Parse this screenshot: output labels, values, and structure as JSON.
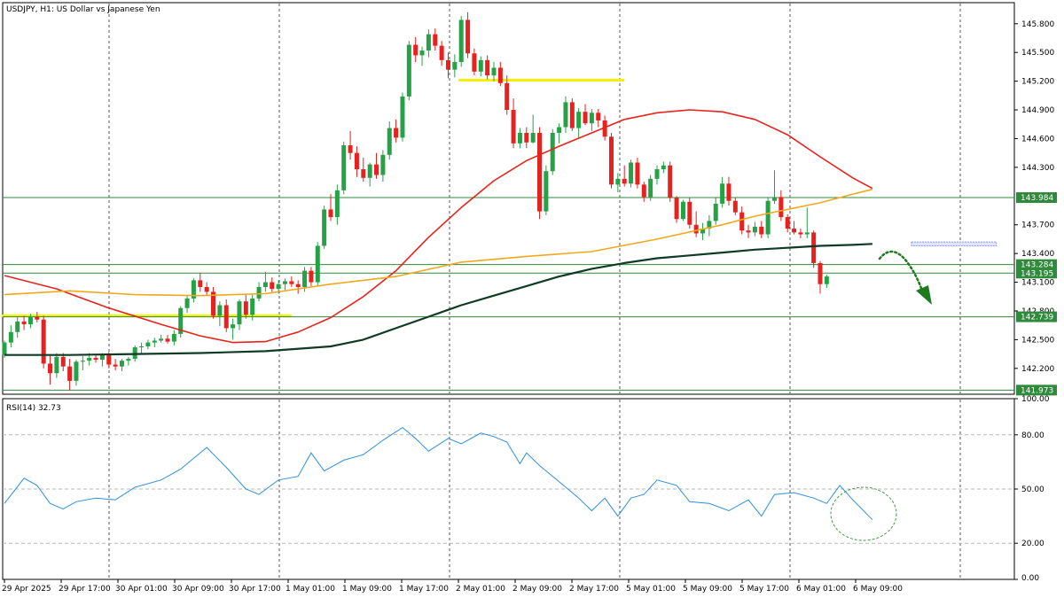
{
  "header": {
    "title": "USDJPY, H1:  US Dollar vs Japanese Yen"
  },
  "colors": {
    "bull": "#26a145",
    "bear": "#e8201e",
    "ma_fast": "#e8231c",
    "ma_mid": "#f2a81d",
    "ma_slow": "#0f3b24",
    "level_line": "#2d8a3a",
    "level_tag": "#2f8a3c",
    "yellow_level": "#f4f000",
    "rsi_line": "#2f8fe0",
    "forecast": "#1f7a1f",
    "zone": "#8f9ae8",
    "grid": "#555555"
  },
  "chart_data": [
    {
      "type": "candlestick",
      "title": "USDJPY, H1:  US Dollar vs Japanese Yen",
      "x_tick_labels": [
        "29 Apr 2025",
        "29 Apr 17:00",
        "30 Apr 01:00",
        "30 Apr 09:00",
        "30 Apr 17:00",
        "1 May 01:00",
        "1 May 09:00",
        "1 May 17:00",
        "2 May 01:00",
        "2 May 09:00",
        "2 May 17:00",
        "5 May 01:00",
        "5 May 09:00",
        "5 May 17:00",
        "6 May 01:00",
        "6 May 09:00"
      ],
      "y_tick_labels": [
        "145.800",
        "145.500",
        "145.200",
        "144.900",
        "144.600",
        "144.300",
        "143.700",
        "143.400",
        "143.100",
        "142.800",
        "142.500",
        "142.200"
      ],
      "y_ticks": [
        145.8,
        145.5,
        145.2,
        144.9,
        144.6,
        144.3,
        143.7,
        143.4,
        143.1,
        142.8,
        142.5,
        142.2
      ],
      "ylim": [
        141.93,
        146.02
      ],
      "grid": "vertical dashed",
      "price_levels": [
        {
          "value": 143.984,
          "label": "143.984"
        },
        {
          "value": 143.284,
          "label": "143.284"
        },
        {
          "value": 143.195,
          "label": "143.195"
        },
        {
          "value": 142.739,
          "label": "142.739"
        },
        {
          "value": 141.973,
          "label": "141.973"
        }
      ],
      "yellow_levels": [
        {
          "value": 145.21,
          "from_bar": 70,
          "to_bar": 95
        },
        {
          "value": 142.75,
          "from_bar": 0,
          "to_bar": 44
        }
      ],
      "zone": {
        "low": 143.48,
        "high": 143.52,
        "from_bar": 139,
        "to_bar": 152
      },
      "candles": [
        [
          142.34,
          142.49,
          142.31,
          142.47
        ],
        [
          142.47,
          142.65,
          142.42,
          142.58
        ],
        [
          142.58,
          142.74,
          142.52,
          142.69
        ],
        [
          142.69,
          142.75,
          142.6,
          142.66
        ],
        [
          142.66,
          142.77,
          142.62,
          142.74
        ],
        [
          142.74,
          142.79,
          142.68,
          142.71
        ],
        [
          142.71,
          142.75,
          142.2,
          142.25
        ],
        [
          142.25,
          142.33,
          142.03,
          142.15
        ],
        [
          142.15,
          142.36,
          142.1,
          142.32
        ],
        [
          142.32,
          142.36,
          142.17,
          142.22
        ],
        [
          142.22,
          142.3,
          141.97,
          142.07
        ],
        [
          142.07,
          142.29,
          142.02,
          142.27
        ],
        [
          142.27,
          142.33,
          142.18,
          142.28
        ],
        [
          142.28,
          142.36,
          142.23,
          142.31
        ],
        [
          142.31,
          142.35,
          142.26,
          142.29
        ],
        [
          142.29,
          142.36,
          142.22,
          142.34
        ],
        [
          142.34,
          142.37,
          142.2,
          142.24
        ],
        [
          142.24,
          142.3,
          142.18,
          142.22
        ],
        [
          142.22,
          142.3,
          142.17,
          142.28
        ],
        [
          142.28,
          142.32,
          142.23,
          142.3
        ],
        [
          142.3,
          142.44,
          142.27,
          142.42
        ],
        [
          142.42,
          142.47,
          142.35,
          142.43
        ],
        [
          142.43,
          142.5,
          142.4,
          142.47
        ],
        [
          142.47,
          142.52,
          142.42,
          142.49
        ],
        [
          142.49,
          142.55,
          142.47,
          142.51
        ],
        [
          142.51,
          142.55,
          142.46,
          142.48
        ],
        [
          142.48,
          142.6,
          142.44,
          142.56
        ],
        [
          142.56,
          142.85,
          142.52,
          142.83
        ],
        [
          142.83,
          142.96,
          142.78,
          142.93
        ],
        [
          142.93,
          143.14,
          142.89,
          143.12
        ],
        [
          143.12,
          143.2,
          143.0,
          143.05
        ],
        [
          143.05,
          143.1,
          142.96,
          143.0
        ],
        [
          143.0,
          143.05,
          142.72,
          142.75
        ],
        [
          142.75,
          142.9,
          142.64,
          142.86
        ],
        [
          142.86,
          142.92,
          142.58,
          142.62
        ],
        [
          142.62,
          142.72,
          142.5,
          142.66
        ],
        [
          142.66,
          142.92,
          142.6,
          142.9
        ],
        [
          142.9,
          142.97,
          142.72,
          142.76
        ],
        [
          142.76,
          142.97,
          142.7,
          142.93
        ],
        [
          142.93,
          143.1,
          142.9,
          143.05
        ],
        [
          143.05,
          143.21,
          143.0,
          143.1
        ],
        [
          143.1,
          143.15,
          143.0,
          143.03
        ],
        [
          143.03,
          143.12,
          142.98,
          143.08
        ],
        [
          143.08,
          143.14,
          143.02,
          143.11
        ],
        [
          143.11,
          143.16,
          143.05,
          143.08
        ],
        [
          143.08,
          143.12,
          142.98,
          143.05
        ],
        [
          143.05,
          143.26,
          143.0,
          143.22
        ],
        [
          143.22,
          143.26,
          143.06,
          143.1
        ],
        [
          143.1,
          143.52,
          143.06,
          143.48
        ],
        [
          143.48,
          143.9,
          143.45,
          143.86
        ],
        [
          143.86,
          144.02,
          143.74,
          143.78
        ],
        [
          143.78,
          144.12,
          143.7,
          144.06
        ],
        [
          144.06,
          144.57,
          144.02,
          144.53
        ],
        [
          144.53,
          144.68,
          144.38,
          144.45
        ],
        [
          144.45,
          144.52,
          144.2,
          144.28
        ],
        [
          144.28,
          144.4,
          144.15,
          144.19
        ],
        [
          144.19,
          144.35,
          144.1,
          144.33
        ],
        [
          144.33,
          144.45,
          144.18,
          144.22
        ],
        [
          144.22,
          144.48,
          144.15,
          144.43
        ],
        [
          144.43,
          144.78,
          144.38,
          144.71
        ],
        [
          144.71,
          144.8,
          144.56,
          144.61
        ],
        [
          144.61,
          145.08,
          144.57,
          145.04
        ],
        [
          145.04,
          145.62,
          145.0,
          145.58
        ],
        [
          145.58,
          145.66,
          145.4,
          145.47
        ],
        [
          145.47,
          145.56,
          145.36,
          145.52
        ],
        [
          145.52,
          145.74,
          145.45,
          145.69
        ],
        [
          145.69,
          145.75,
          145.52,
          145.57
        ],
        [
          145.57,
          145.62,
          145.36,
          145.42
        ],
        [
          145.42,
          145.5,
          145.23,
          145.32
        ],
        [
          145.32,
          145.48,
          145.24,
          145.4
        ],
        [
          145.4,
          145.88,
          145.35,
          145.84
        ],
        [
          145.84,
          145.92,
          145.44,
          145.49
        ],
        [
          145.49,
          145.54,
          145.26,
          145.3
        ],
        [
          145.3,
          145.46,
          145.25,
          145.42
        ],
        [
          145.42,
          145.47,
          145.22,
          145.26
        ],
        [
          145.26,
          145.4,
          145.2,
          145.34
        ],
        [
          145.34,
          145.4,
          145.15,
          145.18
        ],
        [
          145.18,
          145.26,
          144.85,
          144.9
        ],
        [
          144.9,
          145.02,
          144.5,
          144.55
        ],
        [
          144.55,
          144.71,
          144.5,
          144.66
        ],
        [
          144.66,
          144.72,
          144.5,
          144.56
        ],
        [
          144.56,
          144.85,
          144.55,
          144.66
        ],
        [
          144.66,
          144.72,
          143.76,
          143.84
        ],
        [
          143.84,
          144.32,
          143.8,
          144.26
        ],
        [
          144.26,
          144.7,
          144.22,
          144.66
        ],
        [
          144.66,
          144.76,
          144.55,
          144.72
        ],
        [
          144.72,
          145.04,
          144.66,
          144.98
        ],
        [
          144.98,
          145.02,
          144.68,
          144.71
        ],
        [
          144.71,
          144.92,
          144.6,
          144.88
        ],
        [
          144.88,
          144.96,
          144.74,
          144.76
        ],
        [
          144.76,
          144.91,
          144.68,
          144.87
        ],
        [
          144.87,
          144.91,
          144.72,
          144.79
        ],
        [
          144.79,
          144.84,
          144.58,
          144.62
        ],
        [
          144.62,
          144.66,
          144.08,
          144.12
        ],
        [
          144.12,
          144.24,
          144.04,
          144.18
        ],
        [
          144.18,
          144.32,
          144.1,
          144.13
        ],
        [
          144.13,
          144.38,
          144.09,
          144.35
        ],
        [
          144.35,
          144.4,
          144.08,
          144.12
        ],
        [
          144.12,
          144.15,
          143.94,
          143.99
        ],
        [
          143.99,
          144.22,
          143.95,
          144.18
        ],
        [
          144.18,
          144.32,
          144.12,
          144.28
        ],
        [
          144.28,
          144.36,
          144.24,
          144.32
        ],
        [
          144.32,
          144.36,
          143.94,
          143.98
        ],
        [
          143.98,
          144.0,
          143.72,
          143.76
        ],
        [
          143.76,
          143.96,
          143.74,
          143.94
        ],
        [
          143.94,
          143.98,
          143.66,
          143.7
        ],
        [
          143.7,
          143.84,
          143.57,
          143.61
        ],
        [
          143.61,
          143.72,
          143.54,
          143.66
        ],
        [
          143.66,
          143.8,
          143.58,
          143.74
        ],
        [
          143.74,
          143.98,
          143.7,
          143.92
        ],
        [
          143.92,
          144.2,
          143.88,
          144.13
        ],
        [
          144.13,
          144.2,
          143.9,
          143.95
        ],
        [
          143.95,
          143.98,
          143.8,
          143.83
        ],
        [
          143.83,
          143.89,
          143.6,
          143.64
        ],
        [
          143.64,
          143.7,
          143.56,
          143.62
        ],
        [
          143.62,
          143.73,
          143.58,
          143.68
        ],
        [
          143.68,
          143.74,
          143.56,
          143.6
        ],
        [
          143.6,
          143.98,
          143.56,
          143.95
        ],
        [
          143.95,
          144.27,
          143.92,
          143.99
        ],
        [
          143.99,
          144.06,
          143.74,
          143.78
        ],
        [
          143.78,
          143.81,
          143.62,
          143.66
        ],
        [
          143.66,
          143.74,
          143.6,
          143.62
        ],
        [
          143.62,
          143.66,
          143.56,
          143.6
        ],
        [
          143.6,
          143.88,
          143.56,
          143.62
        ],
        [
          143.62,
          143.64,
          143.25,
          143.3
        ],
        [
          143.3,
          143.32,
          142.98,
          143.08
        ],
        [
          143.08,
          143.18,
          143.04,
          143.16
        ]
      ],
      "series": [
        {
          "name": "",
          "role": "ma_fast",
          "x": [
            0,
            8,
            16,
            24,
            30,
            35,
            40,
            45,
            50,
            55,
            60,
            65,
            70,
            75,
            80,
            85,
            90,
            95,
            100,
            105,
            110,
            115,
            120,
            125,
            130,
            133
          ],
          "values": [
            143.17,
            143.03,
            142.83,
            142.66,
            142.54,
            142.47,
            142.48,
            142.58,
            142.73,
            142.95,
            143.22,
            143.57,
            143.88,
            144.16,
            144.37,
            144.52,
            144.66,
            144.8,
            144.87,
            144.9,
            144.88,
            144.8,
            144.64,
            144.41,
            144.19,
            144.08
          ]
        },
        {
          "name": "",
          "role": "ma_mid",
          "x": [
            0,
            10,
            20,
            30,
            40,
            50,
            60,
            70,
            80,
            90,
            100,
            110,
            115,
            120,
            125,
            130,
            133
          ],
          "values": [
            142.97,
            143.01,
            142.97,
            142.96,
            142.98,
            143.08,
            143.16,
            143.31,
            143.37,
            143.42,
            143.55,
            143.7,
            143.79,
            143.86,
            143.93,
            144.02,
            144.07
          ]
        },
        {
          "name": "",
          "role": "ma_slow",
          "x": [
            0,
            10,
            20,
            30,
            40,
            50,
            55,
            60,
            65,
            70,
            75,
            80,
            85,
            90,
            95,
            100,
            105,
            110,
            115,
            120,
            125,
            130,
            133
          ],
          "values": [
            142.34,
            142.34,
            142.35,
            142.36,
            142.38,
            142.43,
            142.5,
            142.62,
            142.74,
            142.86,
            142.96,
            143.06,
            143.16,
            143.24,
            143.3,
            143.35,
            143.38,
            143.41,
            143.44,
            143.46,
            143.48,
            143.49,
            143.5
          ]
        }
      ]
    },
    {
      "type": "line",
      "title": "RSI(14) 32.73",
      "y_tick_labels": [
        "100.00",
        "80.00",
        "50.00",
        "20.00",
        "0.00"
      ],
      "y_ticks": [
        100,
        80,
        50,
        20,
        0
      ],
      "ylim": [
        0,
        100
      ],
      "levels": [
        80,
        50,
        20
      ],
      "series": [
        {
          "name": "RSI(14)",
          "x": [
            0,
            3,
            5,
            7,
            9,
            11,
            14,
            17,
            20,
            24,
            27,
            29,
            31,
            34,
            37,
            39,
            42,
            45,
            47,
            49,
            52,
            55,
            58,
            61,
            63,
            65,
            68,
            70,
            73,
            75,
            77,
            79,
            80,
            82,
            85,
            88,
            90,
            92,
            94,
            96,
            98,
            100,
            103,
            105,
            108,
            111,
            114,
            116,
            118,
            121,
            124,
            126,
            128,
            130,
            133
          ],
          "values": [
            42,
            56,
            52,
            42,
            39,
            43,
            45,
            44,
            51,
            55,
            61,
            67,
            73,
            62,
            50,
            47,
            55,
            57,
            70,
            60,
            66,
            69,
            77,
            84,
            78,
            71,
            78,
            75,
            81,
            79,
            76,
            64,
            70,
            63,
            54,
            45,
            38,
            45,
            35,
            45,
            47,
            55,
            52,
            43,
            42,
            38,
            44,
            35,
            47,
            48,
            45,
            42,
            52,
            44,
            33
          ]
        }
      ]
    }
  ]
}
